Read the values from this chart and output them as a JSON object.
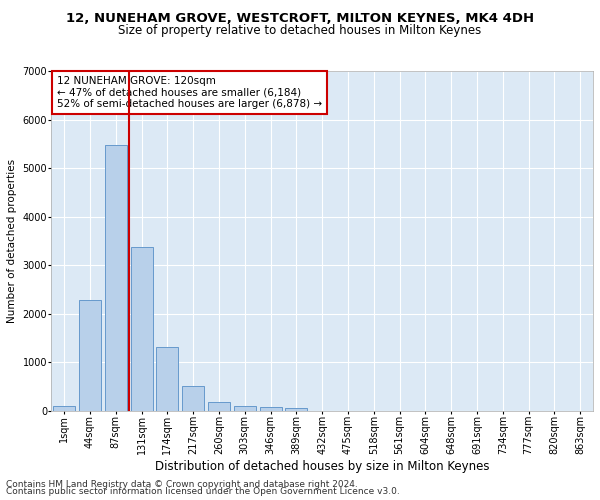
{
  "title1": "12, NUNEHAM GROVE, WESTCROFT, MILTON KEYNES, MK4 4DH",
  "title2": "Size of property relative to detached houses in Milton Keynes",
  "xlabel": "Distribution of detached houses by size in Milton Keynes",
  "ylabel": "Number of detached properties",
  "footer1": "Contains HM Land Registry data © Crown copyright and database right 2024.",
  "footer2": "Contains public sector information licensed under the Open Government Licence v3.0.",
  "annotation_line1": "12 NUNEHAM GROVE: 120sqm",
  "annotation_line2": "← 47% of detached houses are smaller (6,184)",
  "annotation_line3": "52% of semi-detached houses are larger (6,878) →",
  "bar_labels": [
    "1sqm",
    "44sqm",
    "87sqm",
    "131sqm",
    "174sqm",
    "217sqm",
    "260sqm",
    "303sqm",
    "346sqm",
    "389sqm",
    "432sqm",
    "475sqm",
    "518sqm",
    "561sqm",
    "604sqm",
    "648sqm",
    "691sqm",
    "734sqm",
    "777sqm",
    "820sqm",
    "863sqm"
  ],
  "bar_values": [
    100,
    2280,
    5480,
    3380,
    1310,
    510,
    175,
    100,
    70,
    50,
    0,
    0,
    0,
    0,
    0,
    0,
    0,
    0,
    0,
    0,
    0
  ],
  "bar_color": "#b8d0ea",
  "bar_edge_color": "#6699cc",
  "vline_color": "#cc0000",
  "vline_pos": 2.5,
  "ylim": [
    0,
    7000
  ],
  "yticks": [
    0,
    1000,
    2000,
    3000,
    4000,
    5000,
    6000,
    7000
  ],
  "bg_color": "#dce9f5",
  "grid_color": "#ffffff",
  "fig_bg_color": "#ffffff",
  "title1_fontsize": 9.5,
  "title2_fontsize": 8.5,
  "xlabel_fontsize": 8.5,
  "ylabel_fontsize": 7.5,
  "tick_fontsize": 7,
  "annotation_fontsize": 7.5,
  "footer_fontsize": 6.5
}
